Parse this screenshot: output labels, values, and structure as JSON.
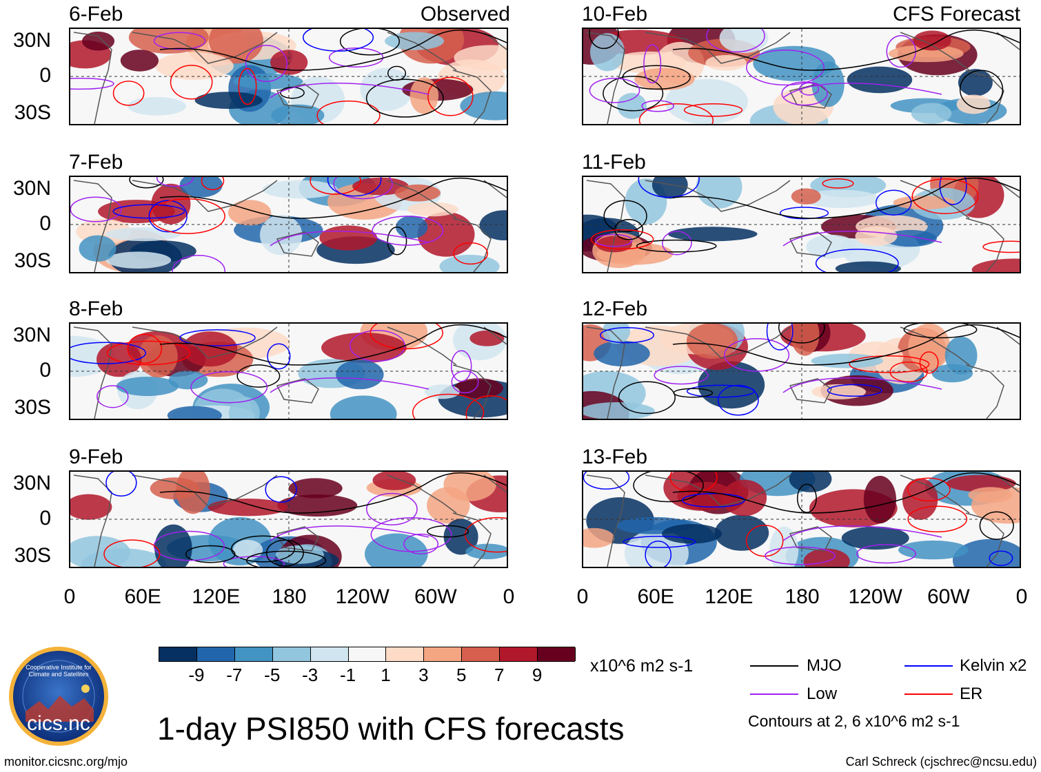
{
  "header": {
    "left_source": "Observed",
    "right_source": "CFS Forecast"
  },
  "panels_left": [
    {
      "date": "6-Feb"
    },
    {
      "date": "7-Feb"
    },
    {
      "date": "8-Feb"
    },
    {
      "date": "9-Feb"
    }
  ],
  "panels_right": [
    {
      "date": "10-Feb"
    },
    {
      "date": "11-Feb"
    },
    {
      "date": "12-Feb"
    },
    {
      "date": "13-Feb"
    }
  ],
  "lat_labels": [
    "30N",
    "0",
    "30S"
  ],
  "lon_labels": [
    "0",
    "60E",
    "120E",
    "180",
    "120W",
    "60W",
    "0"
  ],
  "colorbar": {
    "colors": [
      "#053061",
      "#2166ac",
      "#4393c3",
      "#92c5de",
      "#d1e5f0",
      "#f7f7f7",
      "#fddbc7",
      "#f4a582",
      "#d6604d",
      "#b2182b",
      "#67001f"
    ],
    "ticks": [
      "-9",
      "-7",
      "-5",
      "-3",
      "-1",
      "1",
      "3",
      "5",
      "7",
      "9"
    ],
    "units": "x10^6 m2 s-1"
  },
  "legend": {
    "items": [
      {
        "label": "MJO",
        "color": "#000000"
      },
      {
        "label": "Kelvin x2",
        "color": "#0000ff"
      },
      {
        "label": "Low",
        "color": "#a020f0"
      },
      {
        "label": "ER",
        "color": "#ff0000"
      }
    ],
    "note": "Contours at 2, 6 x10^6 m2 s-1"
  },
  "title": "1-day PSI850 with CFS forecasts",
  "logo_text": "cics.nc",
  "logo_ring_text": "Cooperative Institute for Climate and Satellites",
  "footer": {
    "left": "monitor.cicsnc.org/mjo",
    "right": "Carl Schreck (cjschrec@ncsu.edu)"
  }
}
